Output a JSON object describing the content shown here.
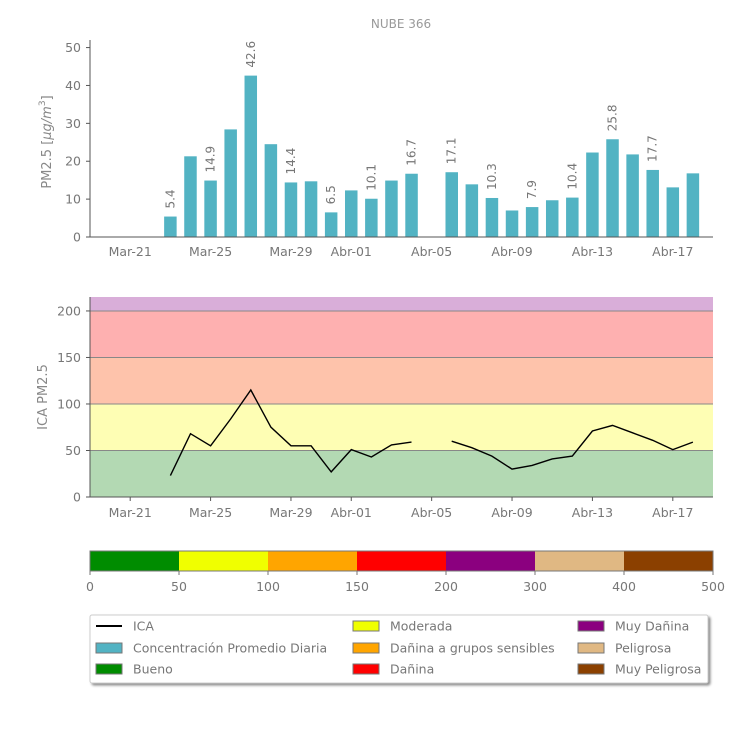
{
  "title": "NUBE 366",
  "colors": {
    "bar": "#52b3c3",
    "axis": "#555555",
    "line": "#000000"
  },
  "chart_data": [
    {
      "type": "bar",
      "title": "NUBE 366",
      "ylabel": "PM2.5 [μg/m³]",
      "ylabel_parts": {
        "main": "PM2.5 [",
        "unit": "μg/m",
        "sup": "3",
        "close": "]"
      },
      "ylim": [
        0,
        52
      ],
      "yticks": [
        0,
        10,
        20,
        30,
        40,
        50
      ],
      "xtick_labels": [
        "Mar-21",
        "Mar-25",
        "Mar-29",
        "Abr-01",
        "Abr-05",
        "Abr-09",
        "Abr-13",
        "Abr-17"
      ],
      "xtick_days": [
        0,
        4,
        8,
        11,
        15,
        19,
        23,
        27
      ],
      "x_day_range": [
        -2,
        29
      ],
      "days": [
        2,
        3,
        4,
        5,
        6,
        7,
        8,
        9,
        10,
        11,
        12,
        13,
        14,
        16,
        17,
        18,
        19,
        20,
        21,
        22,
        23,
        24,
        25,
        26,
        27,
        28
      ],
      "dates": [
        "Mar-23",
        "Mar-24",
        "Mar-25",
        "Mar-26",
        "Mar-27",
        "Mar-28",
        "Mar-29",
        "Mar-30",
        "Mar-31",
        "Abr-01",
        "Abr-02",
        "Abr-03",
        "Abr-04",
        "Abr-06",
        "Abr-07",
        "Abr-08",
        "Abr-09",
        "Abr-10",
        "Abr-11",
        "Abr-12",
        "Abr-13",
        "Abr-14",
        "Abr-15",
        "Abr-16",
        "Abr-17",
        "Abr-18"
      ],
      "values": [
        5.4,
        21.3,
        14.9,
        28.4,
        42.6,
        24.5,
        14.4,
        14.7,
        6.5,
        12.3,
        10.1,
        14.9,
        16.7,
        17.1,
        13.9,
        10.3,
        7.0,
        7.9,
        9.7,
        10.4,
        22.3,
        25.8,
        21.8,
        17.7,
        13.1,
        16.8
      ],
      "data_labels": [
        {
          "index": 0,
          "text": "5.4"
        },
        {
          "index": 2,
          "text": "14.9"
        },
        {
          "index": 4,
          "text": "42.6"
        },
        {
          "index": 6,
          "text": "14.4"
        },
        {
          "index": 8,
          "text": "6.5"
        },
        {
          "index": 10,
          "text": "10.1"
        },
        {
          "index": 12,
          "text": "16.7"
        },
        {
          "index": 13,
          "text": "17.1"
        },
        {
          "index": 15,
          "text": "10.3"
        },
        {
          "index": 17,
          "text": "7.9"
        },
        {
          "index": 19,
          "text": "10.4"
        },
        {
          "index": 21,
          "text": "25.8"
        },
        {
          "index": 23,
          "text": "17.7"
        }
      ]
    },
    {
      "type": "line",
      "ylabel": "ICA PM2.5",
      "ylim": [
        0,
        215
      ],
      "yticks": [
        0,
        50,
        100,
        150,
        200
      ],
      "xtick_labels": [
        "Mar-21",
        "Mar-25",
        "Mar-29",
        "Abr-01",
        "Abr-05",
        "Abr-09",
        "Abr-13",
        "Abr-17"
      ],
      "xtick_days": [
        0,
        4,
        8,
        11,
        15,
        19,
        23,
        27
      ],
      "x_day_range": [
        -2,
        29
      ],
      "bands": [
        {
          "from": 0,
          "to": 50,
          "color": "#b3d9b3"
        },
        {
          "from": 50,
          "to": 100,
          "color": "#fefeb4"
        },
        {
          "from": 100,
          "to": 150,
          "color": "#fec3ab"
        },
        {
          "from": 150,
          "to": 200,
          "color": "#feb0b0"
        },
        {
          "from": 200,
          "to": 215,
          "color": "#d9aed9"
        }
      ],
      "segments": [
        {
          "days": [
            2,
            3,
            4,
            5,
            6,
            7,
            8,
            9,
            10,
            11,
            12,
            13,
            14
          ],
          "values": [
            23,
            68,
            55,
            84,
            115,
            75,
            55,
            55,
            27,
            51,
            43,
            56,
            59
          ]
        },
        {
          "days": [
            16,
            17,
            18,
            19,
            20,
            21,
            22,
            23,
            24,
            25,
            26,
            27,
            28
          ],
          "values": [
            60,
            53,
            44,
            30,
            34,
            41,
            44,
            71,
            77,
            69,
            61,
            51,
            59
          ]
        }
      ]
    },
    {
      "type": "colorbar",
      "ticks": [
        "0",
        "50",
        "100",
        "150",
        "200",
        "300",
        "400",
        "500"
      ],
      "segments": [
        {
          "from": "0",
          "to": "50",
          "color": "#008c00"
        },
        {
          "from": "50",
          "to": "100",
          "color": "#f0ff00"
        },
        {
          "from": "100",
          "to": "150",
          "color": "#ffa500"
        },
        {
          "from": "150",
          "to": "200",
          "color": "#ff0000"
        },
        {
          "from": "200",
          "to": "300",
          "color": "#8b007f"
        },
        {
          "from": "300",
          "to": "400",
          "color": "#e0b883"
        },
        {
          "from": "400",
          "to": "500",
          "color": "#8b4000"
        }
      ]
    }
  ],
  "legend": {
    "items": [
      {
        "label": "ICA",
        "kind": "line",
        "color": "#000000"
      },
      {
        "label": "Concentración Promedio Diaria",
        "kind": "patch",
        "color": "#52b3c3"
      },
      {
        "label": "Bueno",
        "kind": "patch",
        "color": "#008c00"
      },
      {
        "label": "Moderada",
        "kind": "patch",
        "color": "#f0ff00"
      },
      {
        "label": "Dañina a grupos sensibles",
        "kind": "patch",
        "color": "#ffa500"
      },
      {
        "label": "Dañina",
        "kind": "patch",
        "color": "#ff0000"
      },
      {
        "label": "Muy Dañina",
        "kind": "patch",
        "color": "#8b007f"
      },
      {
        "label": "Peligrosa",
        "kind": "patch",
        "color": "#e0b883"
      },
      {
        "label": "Muy Peligrosa",
        "kind": "patch",
        "color": "#8b4000"
      }
    ]
  }
}
